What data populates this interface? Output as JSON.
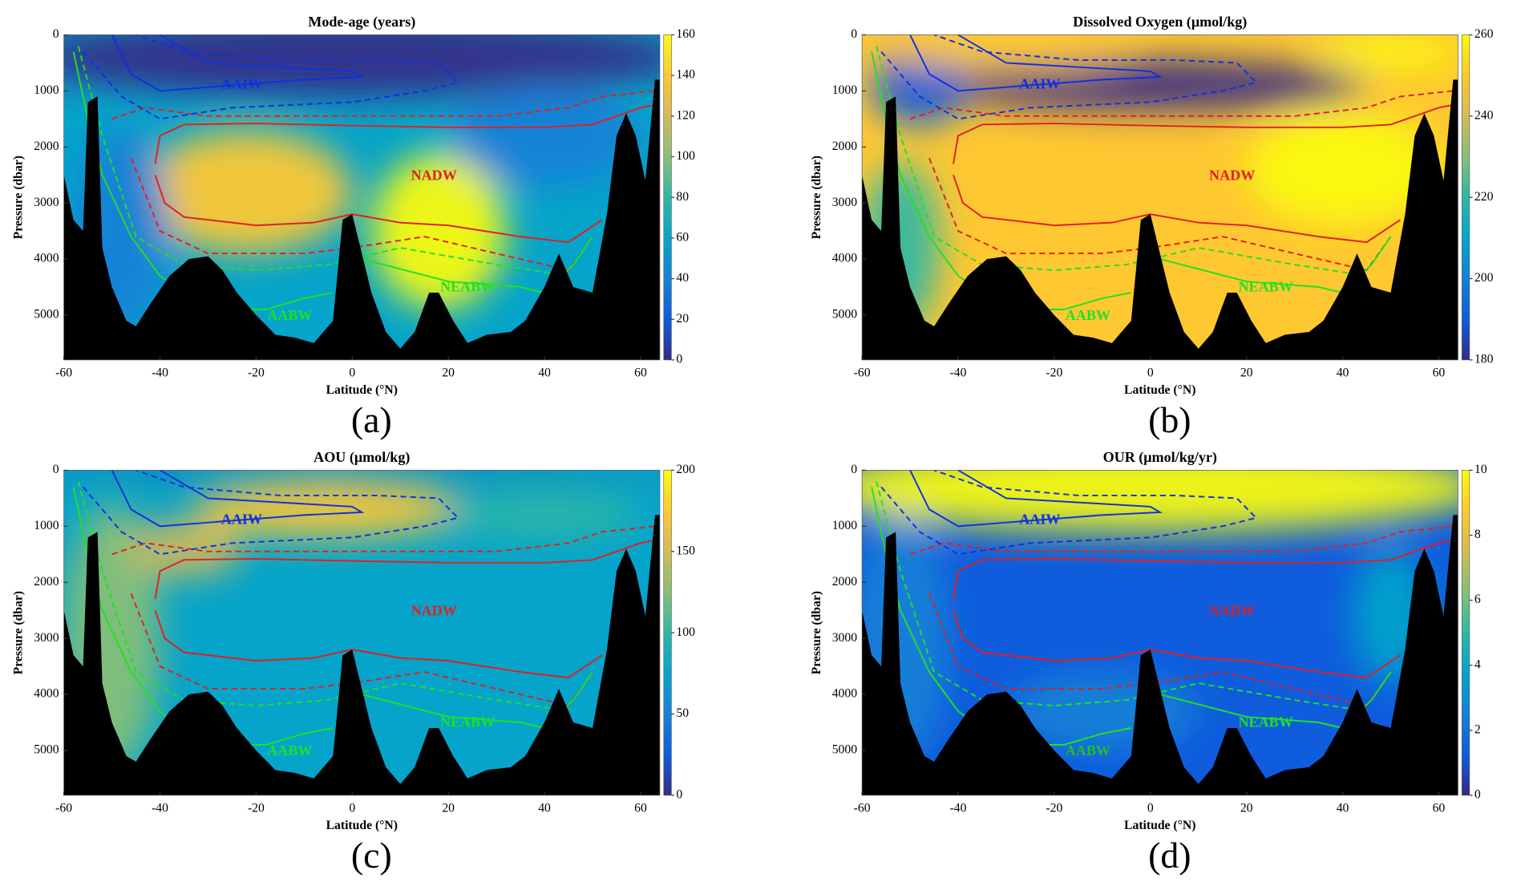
{
  "chart_data": [
    {
      "type": "heatmap",
      "title": "Mode-age (years)",
      "panel_label": "(a)",
      "xlabel": "Latitude (°N)",
      "ylabel": "Pressure (dbar)",
      "xlim": [
        -60,
        64
      ],
      "xticks": [
        -60,
        -40,
        -20,
        0,
        20,
        40,
        60
      ],
      "ylim": [
        0,
        5800
      ],
      "yticks": [
        0,
        1000,
        2000,
        3000,
        4000,
        5000
      ],
      "colorbar": {
        "lim": [
          0,
          160
        ],
        "ticks": [
          0,
          20,
          40,
          60,
          80,
          100,
          120,
          140,
          160
        ]
      },
      "annotations": [
        {
          "text": "AAIW",
          "color": "#1030e0"
        },
        {
          "text": "NADW",
          "color": "#e02020"
        },
        {
          "text": "NEABW",
          "color": "#22e022"
        },
        {
          "text": "AABW",
          "color": "#22e022"
        }
      ]
    },
    {
      "type": "heatmap",
      "title": "Dissolved Oxygen (μmol/kg)",
      "panel_label": "(b)",
      "xlabel": "Latitude (°N)",
      "ylabel": "Pressure (dbar)",
      "xlim": [
        -60,
        64
      ],
      "xticks": [
        -60,
        -40,
        -20,
        0,
        20,
        40,
        60
      ],
      "ylim": [
        0,
        5800
      ],
      "yticks": [
        0,
        1000,
        2000,
        3000,
        4000,
        5000
      ],
      "colorbar": {
        "lim": [
          180,
          260
        ],
        "ticks": [
          180,
          200,
          220,
          240,
          260
        ]
      },
      "annotations": [
        {
          "text": "AAIW",
          "color": "#1030e0"
        },
        {
          "text": "NADW",
          "color": "#e02020"
        },
        {
          "text": "NEABW",
          "color": "#22e022"
        },
        {
          "text": "AABW",
          "color": "#22e022"
        }
      ]
    },
    {
      "type": "heatmap",
      "title": "AOU (μmol/kg)",
      "panel_label": "(c)",
      "xlabel": "Latitude (°N)",
      "ylabel": "Pressure (dbar)",
      "xlim": [
        -60,
        64
      ],
      "xticks": [
        -60,
        -40,
        -20,
        0,
        20,
        40,
        60
      ],
      "ylim": [
        0,
        5800
      ],
      "yticks": [
        0,
        1000,
        2000,
        3000,
        4000,
        5000
      ],
      "colorbar": {
        "lim": [
          0,
          200
        ],
        "ticks": [
          0,
          50,
          100,
          150,
          200
        ]
      },
      "annotations": [
        {
          "text": "AAIW",
          "color": "#1030e0"
        },
        {
          "text": "NADW",
          "color": "#e02020"
        },
        {
          "text": "NEABW",
          "color": "#22e022"
        },
        {
          "text": "AABW",
          "color": "#22e022"
        }
      ]
    },
    {
      "type": "heatmap",
      "title": "OUR (μmol/kg/yr)",
      "panel_label": "(d)",
      "xlabel": "Latitude (°N)",
      "ylabel": "Pressure (dbar)",
      "xlim": [
        -60,
        64
      ],
      "xticks": [
        -60,
        -40,
        -20,
        0,
        20,
        40,
        60
      ],
      "ylim": [
        0,
        5800
      ],
      "yticks": [
        0,
        1000,
        2000,
        3000,
        4000,
        5000
      ],
      "colorbar": {
        "lim": [
          0,
          10
        ],
        "ticks": [
          0,
          2,
          4,
          6,
          8,
          10
        ]
      },
      "annotations": [
        {
          "text": "AAIW",
          "color": "#1030e0"
        },
        {
          "text": "NADW",
          "color": "#e02020"
        },
        {
          "text": "NEABW",
          "color": "#22e022"
        },
        {
          "text": "AABW",
          "color": "#22c022"
        }
      ]
    }
  ]
}
